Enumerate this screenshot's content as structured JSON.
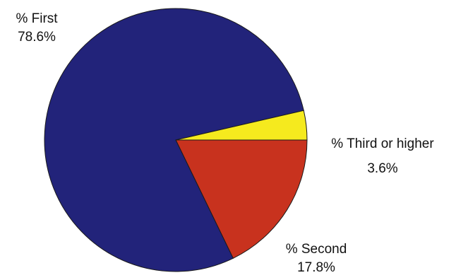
{
  "chart_data": {
    "type": "pie",
    "title": "",
    "slices": [
      {
        "label": "% First",
        "value": 78.6,
        "value_label": "78.6%",
        "color": "#22237a"
      },
      {
        "label": "% Second",
        "value": 17.8,
        "value_label": "17.8%",
        "color": "#c8321e"
      },
      {
        "label": "% Third or higher",
        "value": 3.6,
        "value_label": "3.6%",
        "color": "#f5ea1e"
      }
    ],
    "start_direction": "3 o'clock",
    "rotation": "clockwise",
    "legend": "none",
    "labels": "outside, next to slices"
  }
}
